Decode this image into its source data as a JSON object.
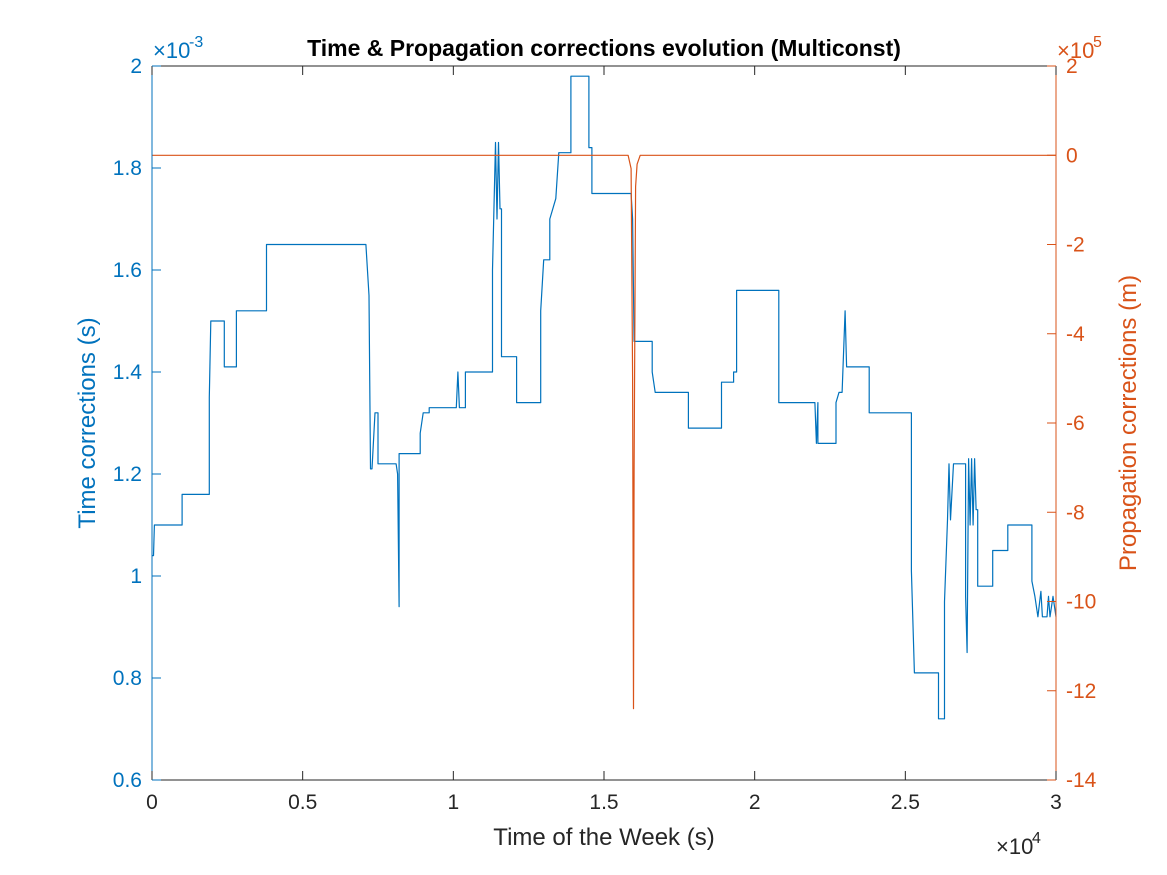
{
  "chart_data": {
    "type": "line",
    "title": "Time & Propagation corrections evolution (Multiconst)",
    "xlabel": "Time of the Week (s)",
    "ylabel_left": "Time corrections (s)",
    "ylabel_right": "Propagation corrections (m)",
    "x_exponent": {
      "base": "×10",
      "power": "4"
    },
    "y_left_exponent": {
      "base": "×10",
      "power": "-3"
    },
    "y_right_exponent": {
      "base": "×10",
      "power": "5"
    },
    "xlim": [
      0,
      3
    ],
    "ylim_left": [
      0.6,
      2.0
    ],
    "ylim_right": [
      -14,
      2
    ],
    "x_ticks": [
      "0",
      "0.5",
      "1",
      "1.5",
      "2",
      "2.5",
      "3"
    ],
    "y_left_ticks": [
      "0.6",
      "0.8",
      "1",
      "1.2",
      "1.4",
      "1.6",
      "1.8",
      "2"
    ],
    "y_right_ticks": [
      "-14",
      "-12",
      "-10",
      "-8",
      "-6",
      "-4",
      "-2",
      "0",
      "2"
    ],
    "grid": false,
    "colors": {
      "left_axis": "#0072BD",
      "right_axis": "#D95319",
      "box": "#262626"
    },
    "series": [
      {
        "axis": "left",
        "color": "#0072BD",
        "points": [
          [
            0.0,
            1.04
          ],
          [
            0.005,
            1.04
          ],
          [
            0.008,
            1.1
          ],
          [
            0.1,
            1.1
          ],
          [
            0.1,
            1.16
          ],
          [
            0.19,
            1.16
          ],
          [
            0.19,
            1.35
          ],
          [
            0.195,
            1.5
          ],
          [
            0.24,
            1.5
          ],
          [
            0.24,
            1.41
          ],
          [
            0.28,
            1.41
          ],
          [
            0.28,
            1.52
          ],
          [
            0.38,
            1.52
          ],
          [
            0.38,
            1.65
          ],
          [
            0.71,
            1.65
          ],
          [
            0.72,
            1.55
          ],
          [
            0.725,
            1.21
          ],
          [
            0.73,
            1.21
          ],
          [
            0.74,
            1.32
          ],
          [
            0.75,
            1.32
          ],
          [
            0.75,
            1.22
          ],
          [
            0.81,
            1.22
          ],
          [
            0.815,
            1.2
          ],
          [
            0.82,
            0.94
          ],
          [
            0.82,
            1.24
          ],
          [
            0.89,
            1.24
          ],
          [
            0.89,
            1.28
          ],
          [
            0.9,
            1.32
          ],
          [
            0.92,
            1.32
          ],
          [
            0.92,
            1.33
          ],
          [
            1.01,
            1.33
          ],
          [
            1.015,
            1.4
          ],
          [
            1.02,
            1.33
          ],
          [
            1.04,
            1.33
          ],
          [
            1.04,
            1.4
          ],
          [
            1.13,
            1.4
          ],
          [
            1.13,
            1.6
          ],
          [
            1.14,
            1.85
          ],
          [
            1.145,
            1.7
          ],
          [
            1.15,
            1.85
          ],
          [
            1.155,
            1.72
          ],
          [
            1.16,
            1.72
          ],
          [
            1.16,
            1.43
          ],
          [
            1.21,
            1.43
          ],
          [
            1.21,
            1.34
          ],
          [
            1.29,
            1.34
          ],
          [
            1.29,
            1.52
          ],
          [
            1.3,
            1.62
          ],
          [
            1.32,
            1.62
          ],
          [
            1.32,
            1.7
          ],
          [
            1.33,
            1.72
          ],
          [
            1.34,
            1.74
          ],
          [
            1.35,
            1.83
          ],
          [
            1.39,
            1.83
          ],
          [
            1.39,
            1.98
          ],
          [
            1.45,
            1.98
          ],
          [
            1.45,
            1.84
          ],
          [
            1.46,
            1.84
          ],
          [
            1.46,
            1.75
          ],
          [
            1.59,
            1.75
          ],
          [
            1.595,
            1.7
          ],
          [
            1.6,
            1.46
          ],
          [
            1.66,
            1.46
          ],
          [
            1.66,
            1.4
          ],
          [
            1.67,
            1.36
          ],
          [
            1.78,
            1.36
          ],
          [
            1.78,
            1.29
          ],
          [
            1.89,
            1.29
          ],
          [
            1.89,
            1.35
          ],
          [
            1.89,
            1.38
          ],
          [
            1.93,
            1.38
          ],
          [
            1.93,
            1.4
          ],
          [
            1.94,
            1.4
          ],
          [
            1.94,
            1.56
          ],
          [
            2.08,
            1.56
          ],
          [
            2.08,
            1.34
          ],
          [
            2.2,
            1.34
          ],
          [
            2.205,
            1.26
          ],
          [
            2.21,
            1.34
          ],
          [
            2.21,
            1.26
          ],
          [
            2.27,
            1.26
          ],
          [
            2.27,
            1.34
          ],
          [
            2.28,
            1.36
          ],
          [
            2.29,
            1.36
          ],
          [
            2.3,
            1.52
          ],
          [
            2.305,
            1.41
          ],
          [
            2.38,
            1.41
          ],
          [
            2.38,
            1.32
          ],
          [
            2.52,
            1.32
          ],
          [
            2.52,
            1.01
          ],
          [
            2.53,
            0.81
          ],
          [
            2.61,
            0.81
          ],
          [
            2.61,
            0.72
          ],
          [
            2.63,
            0.72
          ],
          [
            2.63,
            0.95
          ],
          [
            2.64,
            1.11
          ],
          [
            2.645,
            1.22
          ],
          [
            2.65,
            1.11
          ],
          [
            2.66,
            1.22
          ],
          [
            2.7,
            1.22
          ],
          [
            2.7,
            0.96
          ],
          [
            2.705,
            0.85
          ],
          [
            2.71,
            1.23
          ],
          [
            2.715,
            1.1
          ],
          [
            2.72,
            1.23
          ],
          [
            2.725,
            1.1
          ],
          [
            2.73,
            1.23
          ],
          [
            2.735,
            1.13
          ],
          [
            2.74,
            1.13
          ],
          [
            2.74,
            0.98
          ],
          [
            2.79,
            0.98
          ],
          [
            2.79,
            1.05
          ],
          [
            2.84,
            1.05
          ],
          [
            2.84,
            1.1
          ],
          [
            2.92,
            1.1
          ],
          [
            2.92,
            0.99
          ],
          [
            2.93,
            0.96
          ],
          [
            2.94,
            0.92
          ],
          [
            2.95,
            0.97
          ],
          [
            2.955,
            0.92
          ],
          [
            2.97,
            0.92
          ],
          [
            2.975,
            0.96
          ],
          [
            2.98,
            0.92
          ],
          [
            2.99,
            0.96
          ],
          [
            3.0,
            0.92
          ]
        ]
      },
      {
        "axis": "right",
        "color": "#D95319",
        "points": [
          [
            0.0,
            0.0
          ],
          [
            1.58,
            0.0
          ],
          [
            1.59,
            -0.3
          ],
          [
            1.595,
            -5.0
          ],
          [
            1.598,
            -12.4
          ],
          [
            1.6,
            -7.0
          ],
          [
            1.605,
            -0.7
          ],
          [
            1.61,
            -0.2
          ],
          [
            1.62,
            0.0
          ],
          [
            3.0,
            0.0
          ]
        ]
      }
    ]
  }
}
